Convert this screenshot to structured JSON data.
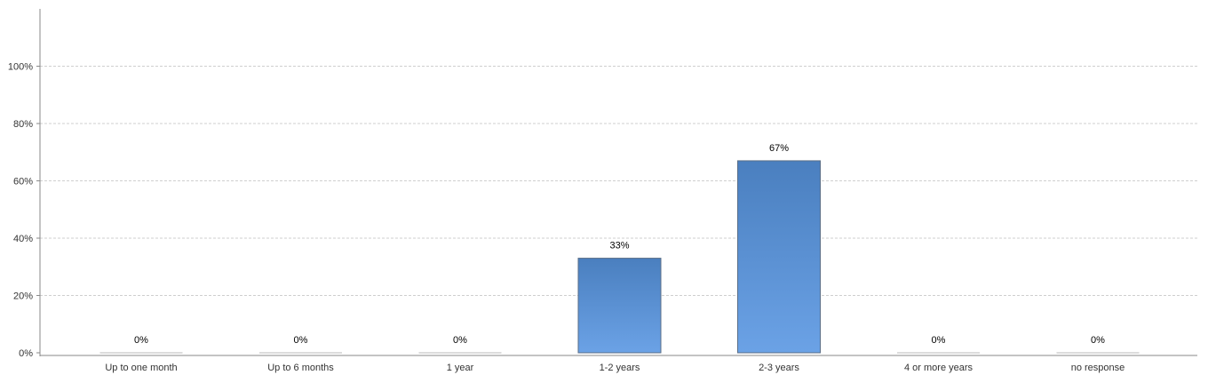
{
  "chart_data": {
    "type": "bar",
    "title": "",
    "xlabel": "",
    "ylabel": "",
    "categories": [
      "Up to one month",
      "Up to 6 months",
      "1 year",
      "1-2 years",
      "2-3 years",
      "4 or more years",
      "no response"
    ],
    "values": [
      0,
      0,
      0,
      33,
      67,
      0,
      0
    ],
    "value_labels": [
      "0%",
      "0%",
      "0%",
      "33%",
      "67%",
      "0%",
      "0%"
    ],
    "yticks": [
      0,
      20,
      40,
      60,
      80,
      100
    ],
    "ytick_labels": [
      "0%",
      "20%",
      "40%",
      "60%",
      "80%",
      "100%"
    ],
    "ylim": [
      0,
      120
    ],
    "grid": true,
    "legend": "none",
    "colors": {
      "bar_top": "#4a7fbf",
      "bar_bottom": "#6ba2e6",
      "bar_stroke": "#5a6e87",
      "grid": "#cfcfcf",
      "axis": "#8a8a8a",
      "text": "#333333"
    }
  }
}
